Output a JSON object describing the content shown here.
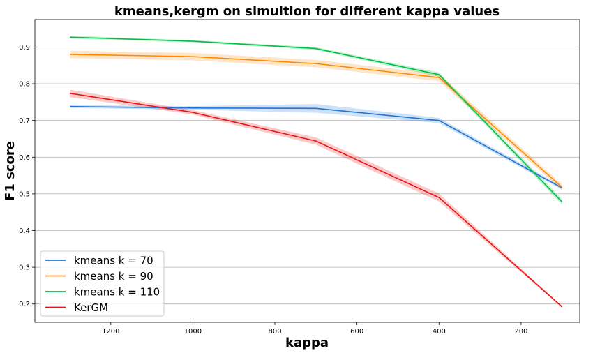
{
  "chart_data": {
    "type": "line",
    "title": "kmeans,kergm on simultion for different kappa values",
    "xlabel": "kappa",
    "ylabel": "F1 score",
    "x": [
      1300,
      1000,
      700,
      400,
      100
    ],
    "xlim": [
      1385,
      57
    ],
    "ylim": [
      0.15,
      0.975
    ],
    "x_ticks": [
      1200,
      1000,
      800,
      600,
      400,
      200
    ],
    "y_ticks": [
      0.2,
      0.3,
      0.4,
      0.5,
      0.6,
      0.7,
      0.8,
      0.9
    ],
    "x_tick_labels": [
      "1200",
      "1000",
      "800",
      "600",
      "400",
      "200"
    ],
    "y_tick_labels": [
      "0.2",
      "0.3",
      "0.4",
      "0.5",
      "0.6",
      "0.7",
      "0.8",
      "0.9"
    ],
    "x_inverted": true,
    "grid": "horizontal",
    "legend_position": "bottom-left",
    "series": [
      {
        "name": "kmeans k = 70",
        "color": "#1f77d4",
        "values": [
          0.738,
          0.734,
          0.733,
          0.7,
          0.516
        ],
        "band": [
          0.004,
          0.005,
          0.012,
          0.007,
          0.005
        ]
      },
      {
        "name": "kmeans k = 90",
        "color": "#ff8a00",
        "values": [
          0.88,
          0.874,
          0.855,
          0.817,
          0.518
        ],
        "band": [
          0.01,
          0.01,
          0.01,
          0.01,
          0.008
        ]
      },
      {
        "name": "kmeans k = 110",
        "color": "#00c044",
        "values": [
          0.927,
          0.916,
          0.896,
          0.825,
          0.478
        ],
        "band": [
          0.004,
          0.003,
          0.004,
          0.006,
          0.008
        ]
      },
      {
        "name": "KerGM",
        "color": "#ee1111",
        "values": [
          0.774,
          0.722,
          0.644,
          0.49,
          0.192
        ],
        "band": [
          0.01,
          0.006,
          0.01,
          0.011,
          0.002
        ]
      }
    ]
  }
}
